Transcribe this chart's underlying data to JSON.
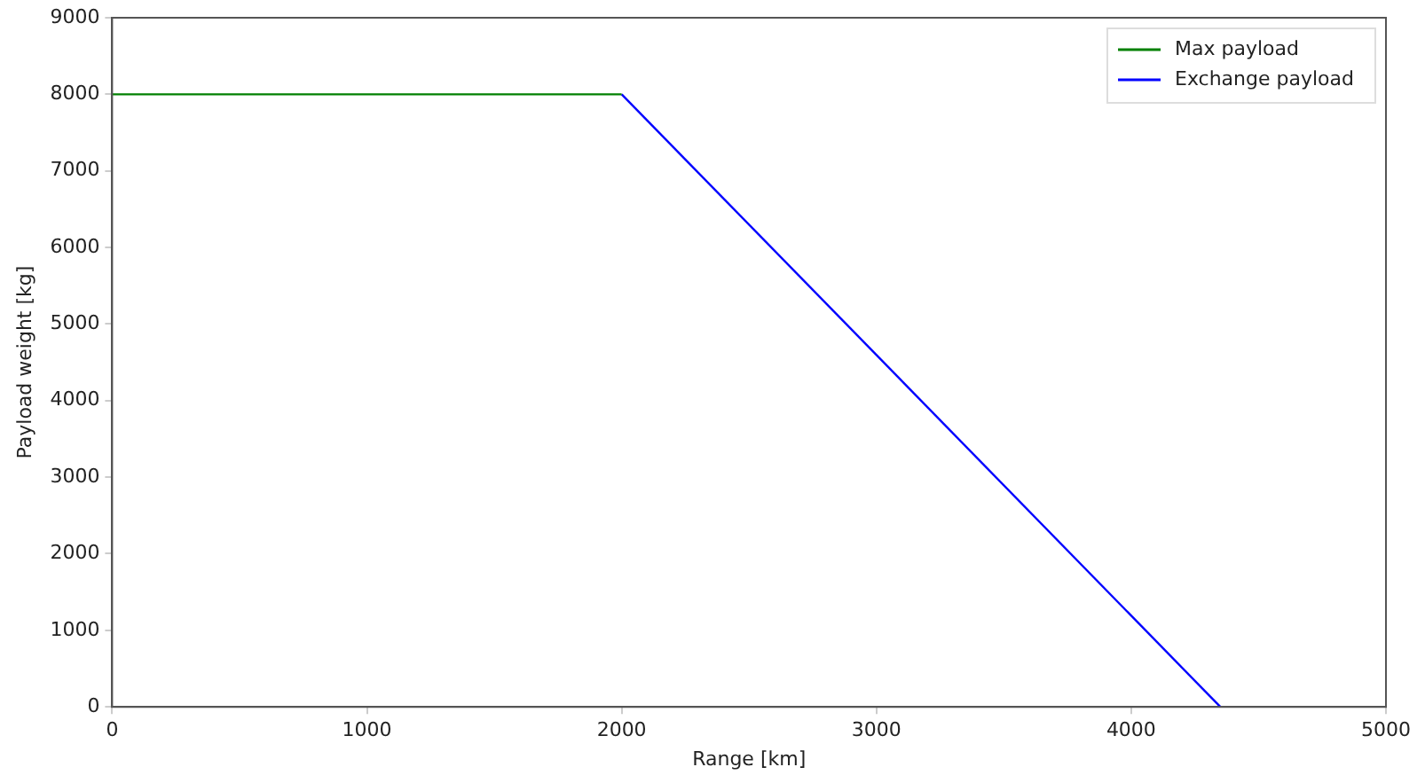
{
  "chart_data": {
    "type": "line",
    "xlabel": "Range [km]",
    "ylabel": "Payload weight [kg]",
    "series": [
      {
        "name": "Max payload",
        "color": "#008000",
        "x": [
          0,
          2000
        ],
        "values": [
          8000,
          8000
        ]
      },
      {
        "name": "Exchange payload",
        "color": "#0000ff",
        "x": [
          2000,
          4350
        ],
        "values": [
          8000,
          0
        ]
      }
    ],
    "xlim": [
      0,
      5000
    ],
    "xticks": [
      0,
      1000,
      2000,
      3000,
      4000,
      5000
    ],
    "ylim": [
      0,
      9000
    ],
    "yticks": [
      0,
      1000,
      2000,
      3000,
      4000,
      5000,
      6000,
      7000,
      8000,
      9000
    ],
    "grid": false,
    "legend": "top right",
    "line_style": "solid",
    "marker": "none"
  }
}
